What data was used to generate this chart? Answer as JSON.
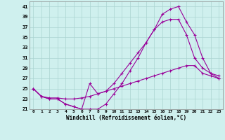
{
  "xlabel": "Windchill (Refroidissement éolien,°C)",
  "background_color": "#cff0ee",
  "grid_color": "#aad4d0",
  "line_color": "#990099",
  "xlim": [
    -0.5,
    23.5
  ],
  "ylim": [
    21,
    42
  ],
  "yticks": [
    21,
    23,
    25,
    27,
    29,
    31,
    33,
    35,
    37,
    39,
    41
  ],
  "xticks": [
    0,
    1,
    2,
    3,
    4,
    5,
    6,
    7,
    8,
    9,
    10,
    11,
    12,
    13,
    14,
    15,
    16,
    17,
    18,
    19,
    20,
    21,
    22,
    23
  ],
  "line1_x": [
    0,
    1,
    2,
    3,
    4,
    5,
    6,
    7,
    8,
    9,
    10,
    11,
    12,
    13,
    14,
    15,
    16,
    17,
    18,
    19,
    20,
    21,
    22,
    23
  ],
  "line1_y": [
    25,
    23.5,
    23,
    23,
    22,
    21.5,
    21,
    21,
    21,
    22,
    24,
    26,
    28.5,
    31,
    34,
    36.5,
    39.5,
    40.5,
    41,
    38,
    35.5,
    31,
    28,
    27.5
  ],
  "line2_x": [
    0,
    1,
    2,
    3,
    4,
    5,
    6,
    7,
    8,
    9,
    10,
    11,
    12,
    13,
    14,
    15,
    16,
    17,
    18,
    19,
    20,
    21,
    22,
    23
  ],
  "line2_y": [
    25,
    23.5,
    23,
    23,
    22,
    21.5,
    21,
    26,
    24,
    24.5,
    26,
    28,
    30,
    32,
    34,
    36.5,
    38,
    38.5,
    38.5,
    35.5,
    31,
    29,
    28,
    27
  ],
  "line3_x": [
    0,
    1,
    2,
    3,
    4,
    5,
    6,
    7,
    8,
    9,
    10,
    11,
    12,
    13,
    14,
    15,
    16,
    17,
    18,
    19,
    20,
    21,
    22,
    23
  ],
  "line3_y": [
    25,
    23.5,
    23.2,
    23.2,
    23,
    23,
    23.2,
    23.5,
    24,
    24.5,
    25,
    25.5,
    26,
    26.5,
    27,
    27.5,
    28,
    28.5,
    29,
    29.5,
    29.5,
    28,
    27.5,
    27
  ]
}
